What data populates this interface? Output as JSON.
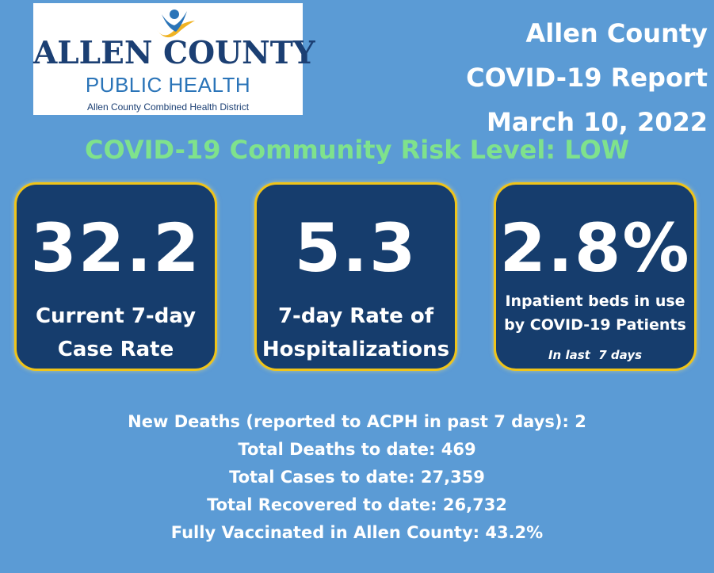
{
  "logo": {
    "line1": "ALLEN COUNTY",
    "line2": "PUBLIC HEALTH",
    "line3": "Allen County Combined Health District"
  },
  "report": {
    "county": "Allen County",
    "title": "COVID-19 Report",
    "date": "March 10, 2022"
  },
  "risk_level": "COVID-19 Community Risk Level: LOW",
  "cards": [
    {
      "value": "32.2",
      "label_line1": "Current 7-day",
      "label_line2": "Case Rate"
    },
    {
      "value": "5.3",
      "label_line1": "7-day Rate of",
      "label_line2": "Hospitalizations"
    },
    {
      "value": "2.8%",
      "label_line1": "Inpatient beds in use",
      "label_line2": "by COVID-19 Patients",
      "note": "In last  7 days"
    }
  ],
  "stats": [
    "New Deaths (reported to ACPH in past 7 days): 2",
    "Total Deaths to date: 469",
    "Total Cases to date: 27,359",
    "Total Recovered to date: 26,732",
    "Fully Vaccinated in Allen County: 43.2%"
  ],
  "colors": {
    "background": "#5b9bd5",
    "card_fill": "#163d6d",
    "card_border": "#f0c419",
    "risk_text": "#7fe28c",
    "logo_navy": "#1b3f73",
    "logo_blue": "#2a74b8"
  }
}
